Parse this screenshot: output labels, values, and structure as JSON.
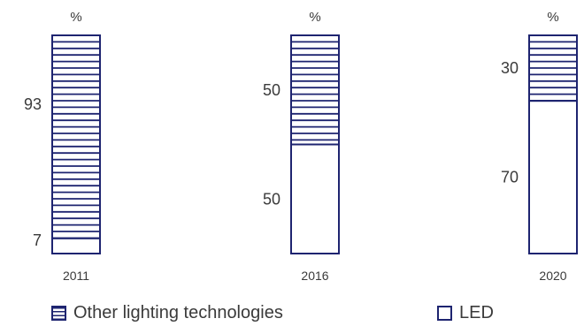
{
  "colors": {
    "stroke": "#1e2470",
    "text": "#3a3a3a",
    "background": "#ffffff"
  },
  "chart_data": {
    "type": "bar",
    "stacked": true,
    "unit_label": "%",
    "categories": [
      "2011",
      "2016",
      "2020"
    ],
    "series": [
      {
        "name": "LED",
        "values": [
          7,
          50,
          70
        ],
        "pattern": "empty"
      },
      {
        "name": "Other lighting technologies",
        "values": [
          93,
          50,
          30
        ],
        "pattern": "horizontal-stripes"
      }
    ],
    "ylim": [
      0,
      100
    ],
    "legend_position": "bottom"
  },
  "legend": {
    "other_label": "Other lighting technologies",
    "led_label": "LED"
  }
}
